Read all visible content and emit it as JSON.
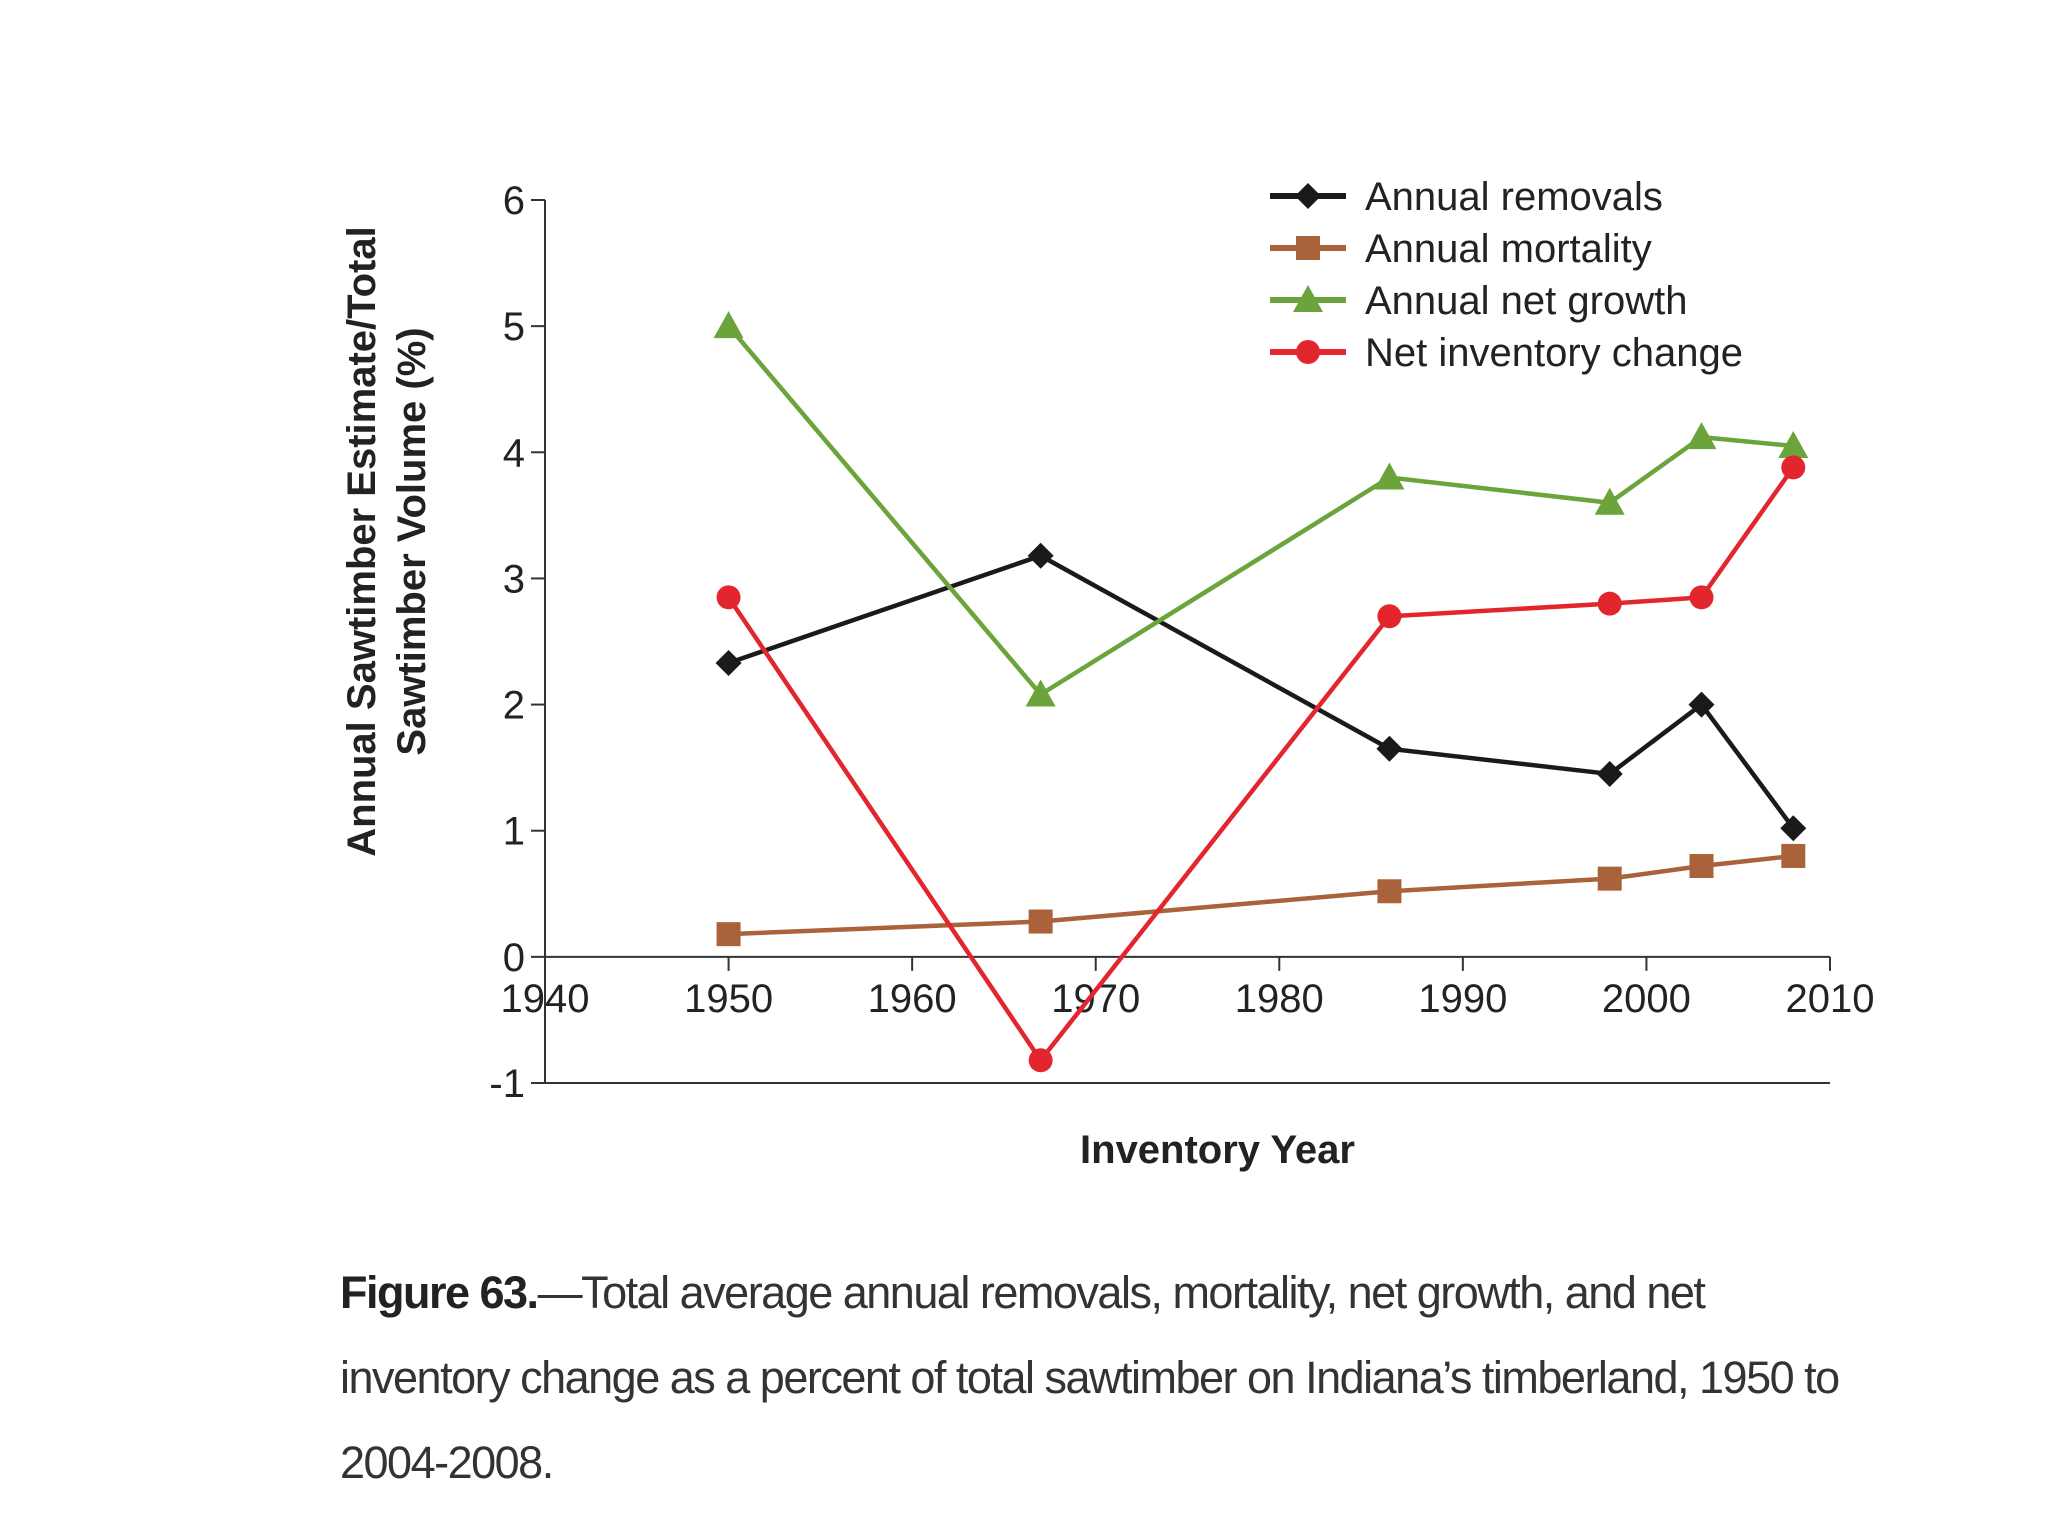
{
  "chart_data": {
    "type": "line",
    "xlabel": "Inventory Year",
    "ylabel_lines": [
      "Annual Sawtimber Estimate/Total",
      "Sawtimber Volume (%)"
    ],
    "xlim": [
      1940,
      2010
    ],
    "ylim": [
      -1,
      6
    ],
    "xticks": [
      "1940",
      "1950",
      "1960",
      "1970",
      "1980",
      "1990",
      "2000",
      "2010"
    ],
    "yticks": [
      "-1",
      "0",
      "1",
      "2",
      "3",
      "4",
      "5",
      "6"
    ],
    "grid": false,
    "legend_position": "top-right",
    "series": [
      {
        "name": "Annual removals",
        "color": "#1a1a1a",
        "marker": "diamond",
        "points": [
          {
            "x": 1950,
            "y": 2.33
          },
          {
            "x": 1967,
            "y": 3.18
          },
          {
            "x": 1986,
            "y": 1.65
          },
          {
            "x": 1998,
            "y": 1.45
          },
          {
            "x": 2003,
            "y": 2.0
          },
          {
            "x": 2008,
            "y": 1.02
          }
        ]
      },
      {
        "name": "Annual mortality",
        "color": "#a9623a",
        "marker": "square",
        "points": [
          {
            "x": 1950,
            "y": 0.18
          },
          {
            "x": 1967,
            "y": 0.28
          },
          {
            "x": 1986,
            "y": 0.52
          },
          {
            "x": 1998,
            "y": 0.62
          },
          {
            "x": 2003,
            "y": 0.72
          },
          {
            "x": 2008,
            "y": 0.8
          }
        ]
      },
      {
        "name": "Annual net growth",
        "color": "#6aa43a",
        "marker": "triangle",
        "points": [
          {
            "x": 1950,
            "y": 5.0
          },
          {
            "x": 1967,
            "y": 2.08
          },
          {
            "x": 1986,
            "y": 3.8
          },
          {
            "x": 1998,
            "y": 3.6
          },
          {
            "x": 2003,
            "y": 4.12
          },
          {
            "x": 2008,
            "y": 4.05
          }
        ]
      },
      {
        "name": "Net inventory change",
        "color": "#e3262e",
        "marker": "circle",
        "points": [
          {
            "x": 1950,
            "y": 2.85
          },
          {
            "x": 1967,
            "y": -0.82
          },
          {
            "x": 1986,
            "y": 2.7
          },
          {
            "x": 1998,
            "y": 2.8
          },
          {
            "x": 2003,
            "y": 2.85
          },
          {
            "x": 2008,
            "y": 3.88
          }
        ]
      }
    ]
  },
  "caption": {
    "label": "Figure 63.",
    "text": "—Total average annual removals, mortality, net growth, and net inventory change as a percent of total sawtimber on Indiana’s timberland, 1950 to 2004-2008."
  }
}
